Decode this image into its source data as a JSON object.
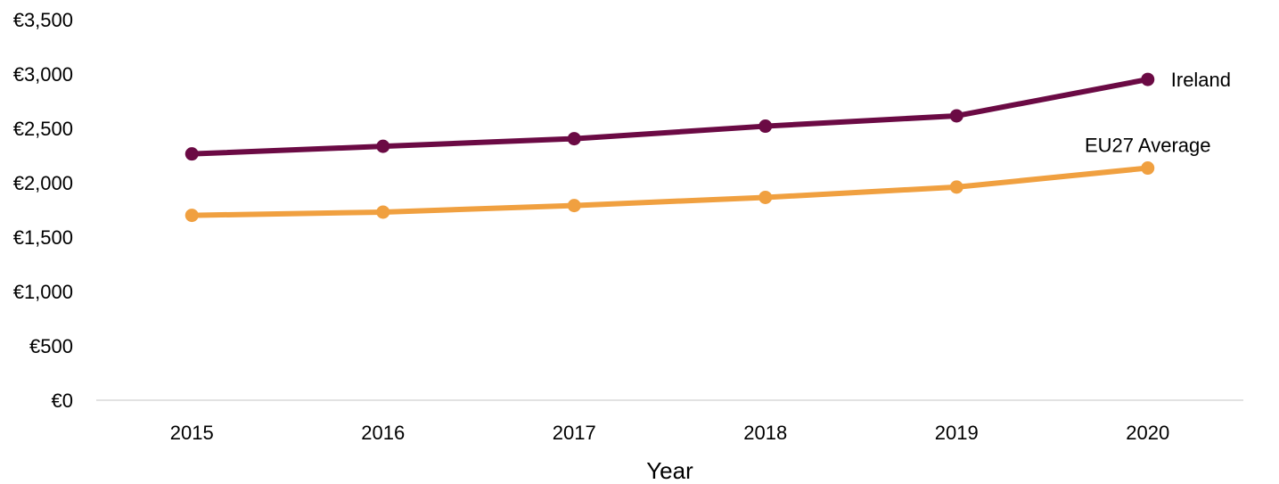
{
  "chart_data": {
    "type": "line",
    "title": "",
    "xlabel": "Year",
    "ylabel": "",
    "categories": [
      "2015",
      "2016",
      "2017",
      "2018",
      "2019",
      "2020"
    ],
    "ylim": [
      0,
      3500
    ],
    "y_ticks": [
      {
        "value": 0,
        "label": "€0"
      },
      {
        "value": 500,
        "label": "€500"
      },
      {
        "value": 1000,
        "label": "€1,000"
      },
      {
        "value": 1500,
        "label": "€1,500"
      },
      {
        "value": 2000,
        "label": "€2,000"
      },
      {
        "value": 2500,
        "label": "€2,500"
      },
      {
        "value": 3000,
        "label": "€3,000"
      },
      {
        "value": 3500,
        "label": "€3,500"
      }
    ],
    "grid": false,
    "legend": "none (series labelled at line ends)",
    "series": [
      {
        "name": "Ireland",
        "color": "#6B0A44",
        "values": [
          2265,
          2335,
          2405,
          2520,
          2615,
          2950
        ]
      },
      {
        "name": "EU27 Average",
        "color": "#F0A040",
        "values": [
          1700,
          1730,
          1790,
          1865,
          1960,
          2135
        ]
      }
    ]
  }
}
